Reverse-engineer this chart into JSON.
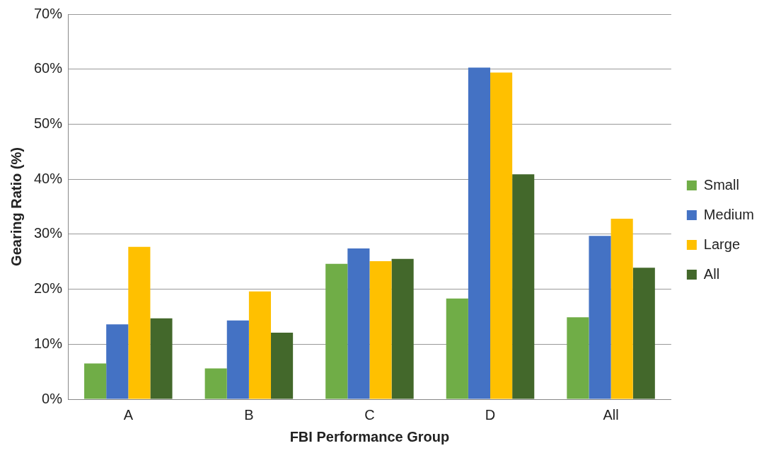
{
  "chart_data": {
    "type": "bar",
    "xlabel": "FBI Performance Group",
    "ylabel": "Gearing Ratio (%)",
    "categories": [
      "A",
      "B",
      "C",
      "D",
      "All"
    ],
    "series": [
      {
        "name": "Small",
        "color": "#70ad47",
        "values": [
          6.5,
          5.6,
          24.6,
          18.3,
          14.9
        ]
      },
      {
        "name": "Medium",
        "color": "#4472c4",
        "values": [
          13.6,
          14.3,
          27.4,
          60.3,
          29.7
        ]
      },
      {
        "name": "Large",
        "color": "#ffc000",
        "values": [
          27.7,
          19.6,
          25.1,
          59.4,
          32.8
        ]
      },
      {
        "name": "All",
        "color": "#43682b",
        "values": [
          14.7,
          12.1,
          25.5,
          40.9,
          23.9
        ]
      }
    ],
    "ylim": [
      0,
      70
    ],
    "yticks": [
      {
        "value": 0,
        "label": "0%"
      },
      {
        "value": 10,
        "label": "10%"
      },
      {
        "value": 20,
        "label": "20%"
      },
      {
        "value": 30,
        "label": "30%"
      },
      {
        "value": 40,
        "label": "40%"
      },
      {
        "value": 50,
        "label": "50%"
      },
      {
        "value": 60,
        "label": "60%"
      },
      {
        "value": 70,
        "label": "70%"
      }
    ],
    "grid": "y",
    "legend": "right"
  }
}
